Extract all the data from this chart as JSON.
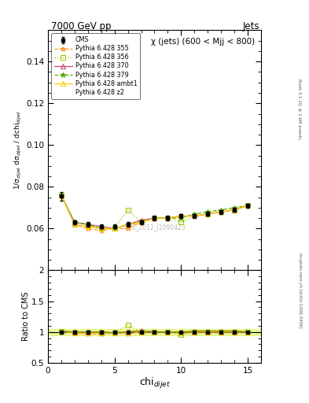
{
  "title_left": "7000 GeV pp",
  "title_right": "Jets",
  "annotation": "χ (jets) (600 < Mjj < 800)",
  "watermark": "CMS_2012_I1090423",
  "right_label_top": "Rivet 3.1.10, ≥ 1.6M events",
  "right_label_bottom": "mcplots.cern.ch [arXiv:1306.3436]",
  "ylabel_main": "1/σ$_{dijet}$ dσ$_{dijet}$ / dchi$_{dijet}$",
  "ylabel_ratio": "Ratio to CMS",
  "xlabel": "chi$_{dijet}$",
  "xlim": [
    0,
    16
  ],
  "ylim_main": [
    0.04,
    0.155
  ],
  "ylim_ratio": [
    0.5,
    2.0
  ],
  "yticks_main": [
    0.06,
    0.08,
    0.1,
    0.12,
    0.14
  ],
  "yticks_ratio": [
    0.5,
    1.0,
    1.5,
    2.0
  ],
  "xticks": [
    0,
    5,
    10,
    15
  ],
  "cms_x": [
    1,
    2,
    3,
    4,
    5,
    6,
    7,
    8,
    9,
    10,
    11,
    12,
    13,
    14,
    15
  ],
  "cms_y": [
    0.0755,
    0.063,
    0.062,
    0.061,
    0.061,
    0.062,
    0.063,
    0.065,
    0.065,
    0.066,
    0.066,
    0.067,
    0.068,
    0.069,
    0.071
  ],
  "cms_yerr": [
    0.002,
    0.001,
    0.001,
    0.001,
    0.001,
    0.001,
    0.001,
    0.001,
    0.001,
    0.001,
    0.001,
    0.001,
    0.001,
    0.001,
    0.001
  ],
  "series": [
    {
      "label": "Pythia 6.428 355",
      "color": "#ff9933",
      "linestyle": "--",
      "marker": "*",
      "x": [
        1,
        2,
        3,
        4,
        5,
        6,
        7,
        8,
        9,
        10,
        11,
        12,
        13,
        14,
        15
      ],
      "y": [
        0.076,
        0.062,
        0.06,
        0.059,
        0.06,
        0.06,
        0.063,
        0.065,
        0.065,
        0.066,
        0.066,
        0.067,
        0.068,
        0.069,
        0.071
      ],
      "ratio": [
        1.007,
        0.984,
        0.968,
        0.967,
        0.984,
        0.968,
        1.0,
        1.0,
        1.0,
        1.0,
        1.0,
        1.0,
        1.0,
        1.0,
        1.0
      ],
      "markerfill": "filled"
    },
    {
      "label": "Pythia 6.428 356",
      "color": "#99cc00",
      "linestyle": ":",
      "marker": "s",
      "x": [
        1,
        2,
        3,
        4,
        5,
        6,
        7,
        8,
        9,
        10,
        11,
        12,
        13,
        14,
        15
      ],
      "y": [
        0.076,
        0.062,
        0.061,
        0.06,
        0.06,
        0.069,
        0.063,
        0.065,
        0.065,
        0.063,
        0.066,
        0.067,
        0.068,
        0.069,
        0.071
      ],
      "ratio": [
        1.007,
        0.984,
        0.984,
        0.984,
        0.984,
        1.113,
        1.0,
        1.0,
        1.0,
        0.955,
        1.0,
        1.0,
        1.0,
        1.0,
        1.0
      ],
      "markerfill": "none"
    },
    {
      "label": "Pythia 6.428 370",
      "color": "#cc4477",
      "linestyle": "-",
      "marker": "^",
      "x": [
        1,
        2,
        3,
        4,
        5,
        6,
        7,
        8,
        9,
        10,
        11,
        12,
        13,
        14,
        15
      ],
      "y": [
        0.076,
        0.063,
        0.062,
        0.061,
        0.06,
        0.062,
        0.064,
        0.065,
        0.065,
        0.066,
        0.066,
        0.067,
        0.068,
        0.069,
        0.071
      ],
      "ratio": [
        1.007,
        1.0,
        1.0,
        1.0,
        0.984,
        1.0,
        1.016,
        1.0,
        1.0,
        1.0,
        1.0,
        1.0,
        1.0,
        1.0,
        1.0
      ],
      "markerfill": "none"
    },
    {
      "label": "Pythia 6.428 379",
      "color": "#55aa00",
      "linestyle": "--",
      "marker": "*",
      "x": [
        1,
        2,
        3,
        4,
        5,
        6,
        7,
        8,
        9,
        10,
        11,
        12,
        13,
        14,
        15
      ],
      "y": [
        0.076,
        0.063,
        0.062,
        0.06,
        0.06,
        0.062,
        0.063,
        0.065,
        0.065,
        0.065,
        0.067,
        0.068,
        0.069,
        0.07,
        0.071
      ],
      "ratio": [
        1.007,
        1.0,
        1.0,
        0.984,
        0.984,
        1.0,
        1.0,
        1.0,
        1.0,
        0.985,
        1.015,
        1.015,
        1.015,
        1.014,
        1.0
      ],
      "markerfill": "filled"
    },
    {
      "label": "Pythia 6.428 ambt1",
      "color": "#ffcc00",
      "linestyle": "-",
      "marker": "^",
      "x": [
        1,
        2,
        3,
        4,
        5,
        6,
        7,
        8,
        9,
        10,
        11,
        12,
        13,
        14,
        15
      ],
      "y": [
        0.076,
        0.062,
        0.061,
        0.06,
        0.06,
        0.062,
        0.063,
        0.065,
        0.065,
        0.066,
        0.066,
        0.067,
        0.068,
        0.069,
        0.071
      ],
      "ratio": [
        1.007,
        0.984,
        0.984,
        0.984,
        0.984,
        1.0,
        1.0,
        1.0,
        1.0,
        1.0,
        1.0,
        1.0,
        1.0,
        1.0,
        1.0
      ],
      "markerfill": "none"
    },
    {
      "label": "Pythia 6.428 z2",
      "color": "#888800",
      "linestyle": "-",
      "marker": null,
      "x": [
        1,
        2,
        3,
        4,
        5,
        6,
        7,
        8,
        9,
        10,
        11,
        12,
        13,
        14,
        15
      ],
      "y": [
        0.076,
        0.063,
        0.062,
        0.061,
        0.06,
        0.062,
        0.064,
        0.065,
        0.065,
        0.066,
        0.067,
        0.068,
        0.069,
        0.07,
        0.071
      ],
      "ratio": [
        1.007,
        1.0,
        1.0,
        1.0,
        0.984,
        1.0,
        1.016,
        1.0,
        1.0,
        1.0,
        1.015,
        1.015,
        1.015,
        1.014,
        1.0
      ],
      "markerfill": "none"
    }
  ],
  "ratio_band_color": "#ccee00",
  "ratio_band_alpha": 0.35,
  "background_color": "#ffffff"
}
